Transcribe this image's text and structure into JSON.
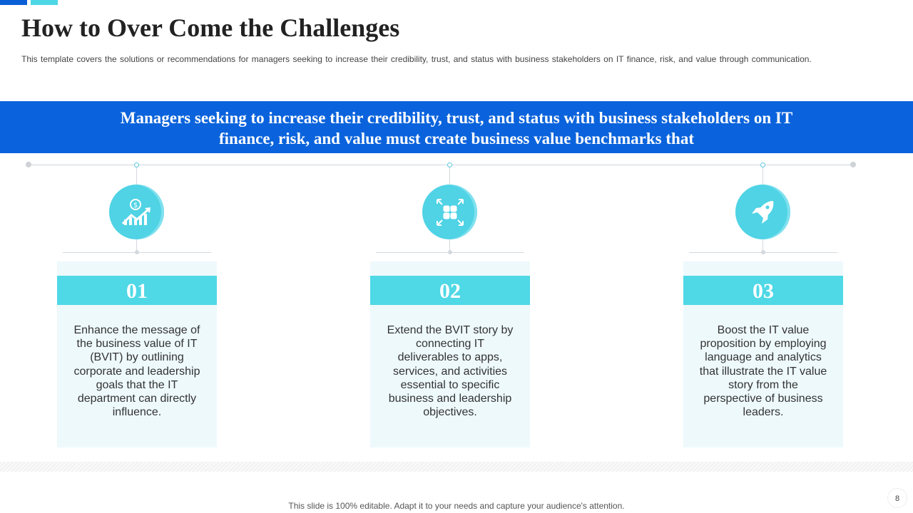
{
  "title": "How to Over Come the Challenges",
  "subtitle": "This template covers the solutions or recommendations for managers seeking to increase their credibility, trust, and status with business stakeholders on IT finance, risk, and value through communication.",
  "banner": "Managers seeking to increase their credibility, trust, and status with business stakeholders on IT finance, risk, and value must create business value benchmarks that",
  "steps": [
    {
      "number": "01",
      "icon": "money-growth-icon",
      "text": "Enhance the message of the business value of IT (BVIT) by outlining corporate and leadership goals that the IT department can directly influence."
    },
    {
      "number": "02",
      "icon": "expand-grid-icon",
      "text": "Extend the BVIT story by connecting IT deliverables to apps, services, and activities essential to specific business and leadership objectives."
    },
    {
      "number": "03",
      "icon": "rocket-icon",
      "text": "Boost the IT value proposition by employing language and analytics that illustrate the IT value story from the perspective of business leaders."
    }
  ],
  "footer": "This slide is 100% editable. Adapt it to your needs and capture your audience's attention.",
  "page_number": "8",
  "colors": {
    "banner": "#0a63dc",
    "accent": "#4fd8e6",
    "card": "#eef9fc"
  }
}
